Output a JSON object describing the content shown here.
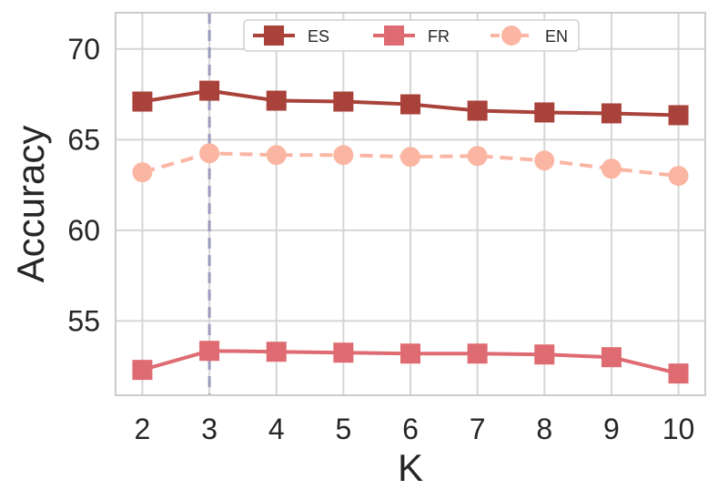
{
  "chart_data": {
    "type": "line",
    "xlabel": "K",
    "ylabel": "Accuracy",
    "x": [
      2,
      3,
      4,
      5,
      6,
      7,
      8,
      9,
      10
    ],
    "xlim": [
      1.6,
      10.4
    ],
    "ylim": [
      50.9,
      72.0
    ],
    "yticks": [
      55,
      60,
      65,
      70
    ],
    "grid": true,
    "legend_position": "top",
    "vline": {
      "x": 3,
      "color": "#9a9abf",
      "style": "dashed"
    },
    "series": [
      {
        "name": "ES",
        "color": "#a9423a",
        "marker": "square",
        "linestyle": "solid",
        "values": [
          67.1,
          67.7,
          67.15,
          67.1,
          66.95,
          66.6,
          66.5,
          66.45,
          66.35
        ]
      },
      {
        "name": "FR",
        "color": "#df6b72",
        "marker": "square",
        "linestyle": "solid",
        "values": [
          52.3,
          53.35,
          53.3,
          53.25,
          53.2,
          53.2,
          53.15,
          53.0,
          52.1
        ]
      },
      {
        "name": "EN",
        "color": "#fbb6a3",
        "marker": "circle",
        "linestyle": "dashed",
        "values": [
          63.2,
          64.25,
          64.15,
          64.15,
          64.05,
          64.1,
          63.85,
          63.4,
          63.0
        ]
      }
    ]
  }
}
